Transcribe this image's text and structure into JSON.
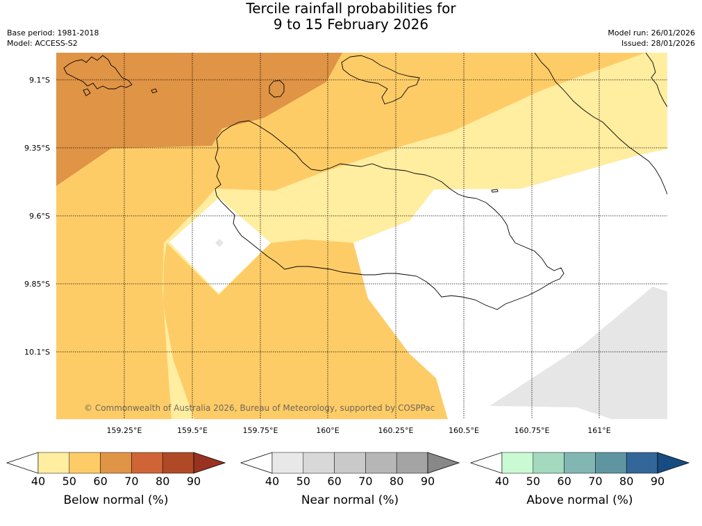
{
  "header": {
    "title_line1": "Tercile rainfall probabilities for",
    "title_line2": "9 to 15 February 2026",
    "base_period": "Base period: 1981-2018",
    "model": "Model: ACCESS-S2",
    "model_run": "Model run: 26/01/2026",
    "issued": "Issued: 28/01/2026"
  },
  "map": {
    "lat_labels": [
      "9.1°S",
      "9.35°S",
      "9.6°S",
      "9.85°S",
      "10.1°S"
    ],
    "lon_labels": [
      "159.25°E",
      "159.5°E",
      "159.75°E",
      "160°E",
      "160.25°E",
      "160.5°E",
      "160.75°E",
      "161°E"
    ],
    "copyright": "© Commonwealth of Australia 2026, Bureau of Meteorology, supported by COSPPac",
    "colors": {
      "below_40_50": "#ffeda0",
      "below_50_60": "#fecc67",
      "below_60_70": "#e09446",
      "near_40_50": "#e6e6e6",
      "no_signal": "#ffffff",
      "coast": "#000000"
    }
  },
  "colorbars": [
    {
      "title": "Below normal (%)",
      "ticks": [
        "40",
        "50",
        "60",
        "70",
        "80",
        "90"
      ],
      "colors": [
        "#ffeda0",
        "#fecc67",
        "#e09446",
        "#cf6536",
        "#b04a26",
        "#983220"
      ]
    },
    {
      "title": "Near normal (%)",
      "ticks": [
        "40",
        "50",
        "60",
        "70",
        "80",
        "90"
      ],
      "colors": [
        "#e8e8e8",
        "#d8d8d8",
        "#c9c9c9",
        "#b6b6b6",
        "#a4a4a4",
        "#888888"
      ]
    },
    {
      "title": "Above normal (%)",
      "ticks": [
        "40",
        "50",
        "60",
        "70",
        "80",
        "90"
      ],
      "colors": [
        "#c9fad3",
        "#a2d9bf",
        "#82b6b2",
        "#5f95a1",
        "#336799",
        "#164c82"
      ]
    }
  ]
}
